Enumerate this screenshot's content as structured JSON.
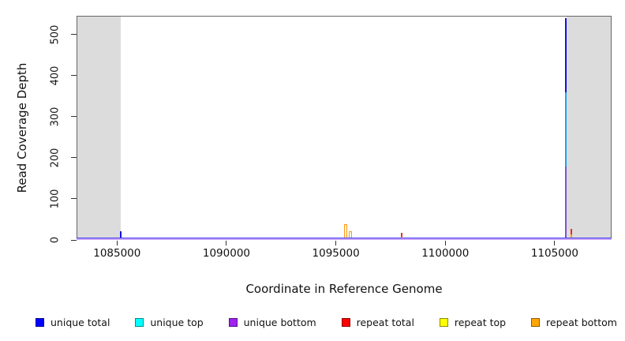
{
  "figure": {
    "xlabel": "Coordinate in Reference Genome",
    "ylabel": "Read Coverage Depth"
  },
  "chart_data": {
    "type": "line",
    "title": "",
    "xlabel": "Coordinate in Reference Genome",
    "ylabel": "Read Coverage Depth",
    "xlim": [
      1083150,
      1107600
    ],
    "ylim": [
      0,
      546
    ],
    "x_ticks": [
      1085000,
      1090000,
      1095000,
      1100000,
      1105000
    ],
    "y_ticks": [
      0,
      100,
      200,
      300,
      400,
      500
    ],
    "grid": false,
    "legend_position": "bottom-horizontal",
    "mask_color": "#DCDCDC",
    "masked_regions": [
      [
        1083150,
        1085180
      ],
      [
        1105540,
        1107600
      ]
    ],
    "baseline": {
      "value": 0,
      "colors": [
        "#3C3CF0",
        "#C9A7F8"
      ]
    },
    "series_colors": {
      "unique total": "#1010E8",
      "unique top": "#18A4F8",
      "unique bottom": "#7D53D8",
      "repeat total": "#EE2C10",
      "repeat top": "#F5F500",
      "repeat bottom": "#FF9820"
    },
    "spikes": [
      {
        "series": "unique total",
        "x": 1105520,
        "value": 540
      },
      {
        "series": "unique top",
        "x": 1105520,
        "value": 360
      },
      {
        "series": "unique bottom",
        "x": 1105520,
        "value": 178
      },
      {
        "series": "unique total",
        "x": 1085160,
        "value": 21
      },
      {
        "series": "repeat total",
        "x": 1094800,
        "value": 4
      },
      {
        "series": "repeat bottom",
        "x": 1095450,
        "value": 38,
        "style": "hollow"
      },
      {
        "series": "repeat bottom",
        "x": 1095650,
        "value": 22,
        "style": "hollow"
      },
      {
        "series": "repeat total",
        "x": 1098000,
        "value": 17
      },
      {
        "series": "repeat bottom",
        "x": 1098000,
        "value": 8
      },
      {
        "series": "repeat total",
        "x": 1105760,
        "value": 27
      },
      {
        "series": "repeat bottom",
        "x": 1105760,
        "value": 13
      }
    ],
    "legend": [
      {
        "label": "unique total",
        "color": "#0000FF"
      },
      {
        "label": "unique top",
        "color": "#00FFFF"
      },
      {
        "label": "unique bottom",
        "color": "#A020F0"
      },
      {
        "label": "repeat total",
        "color": "#FF0000"
      },
      {
        "label": "repeat top",
        "color": "#FFFF00"
      },
      {
        "label": "repeat bottom",
        "color": "#FFA500"
      }
    ]
  }
}
